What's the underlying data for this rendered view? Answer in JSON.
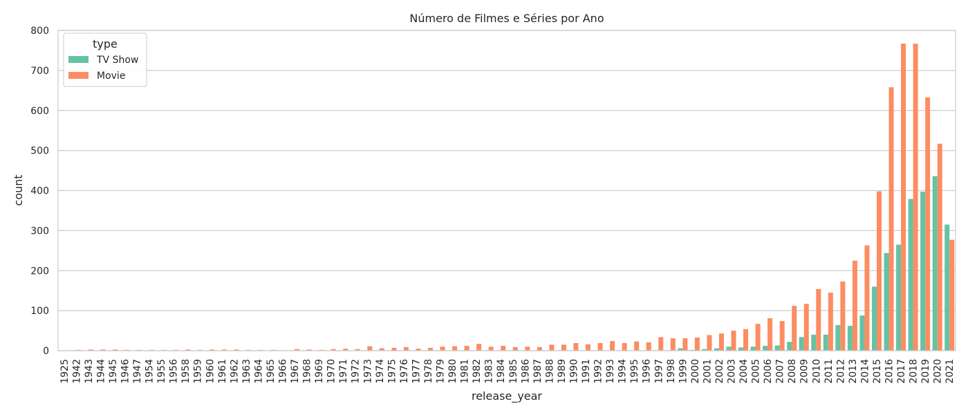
{
  "chart_data": {
    "type": "bar",
    "title": "Número de Filmes e Séries por Ano",
    "xlabel": "release_year",
    "ylabel": "count",
    "ylim": [
      0,
      800
    ],
    "yticks": [
      0,
      100,
      200,
      300,
      400,
      500,
      600,
      700,
      800
    ],
    "grid": true,
    "legend": {
      "title": "type",
      "placement": "top-left"
    },
    "categories": [
      "1925",
      "1942",
      "1943",
      "1944",
      "1945",
      "1946",
      "1947",
      "1954",
      "1955",
      "1956",
      "1958",
      "1959",
      "1960",
      "1961",
      "1962",
      "1963",
      "1964",
      "1965",
      "1966",
      "1967",
      "1968",
      "1969",
      "1970",
      "1971",
      "1972",
      "1973",
      "1974",
      "1975",
      "1976",
      "1977",
      "1978",
      "1979",
      "1980",
      "1981",
      "1982",
      "1983",
      "1984",
      "1985",
      "1986",
      "1987",
      "1988",
      "1989",
      "1990",
      "1991",
      "1992",
      "1993",
      "1994",
      "1995",
      "1996",
      "1997",
      "1998",
      "1999",
      "2000",
      "2001",
      "2002",
      "2003",
      "2004",
      "2005",
      "2006",
      "2007",
      "2008",
      "2009",
      "2010",
      "2011",
      "2012",
      "2013",
      "2014",
      "2015",
      "2016",
      "2017",
      "2018",
      "2019",
      "2020",
      "2021"
    ],
    "series": [
      {
        "name": "TV Show",
        "color": "#66c2a5",
        "values": [
          0,
          0,
          0,
          0,
          0,
          0,
          0,
          0,
          0,
          0,
          0,
          0,
          0,
          0,
          0,
          0,
          0,
          0,
          0,
          0,
          0,
          0,
          0,
          0,
          0,
          1,
          1,
          0,
          0,
          0,
          0,
          0,
          0,
          0,
          0,
          0,
          0,
          0,
          0,
          0,
          0,
          0,
          0,
          1,
          0,
          0,
          0,
          1,
          1,
          1,
          0,
          6,
          2,
          4,
          6,
          10,
          8,
          10,
          12,
          13,
          22,
          34,
          40,
          40,
          64,
          62,
          88,
          160,
          244,
          265,
          379,
          397,
          436,
          315
        ]
      },
      {
        "name": "Movie",
        "color": "#fc8d62",
        "values": [
          0,
          2,
          3,
          3,
          3,
          2,
          2,
          2,
          2,
          2,
          3,
          2,
          3,
          3,
          3,
          2,
          2,
          2,
          1,
          4,
          3,
          2,
          4,
          5,
          4,
          11,
          6,
          7,
          9,
          5,
          7,
          10,
          11,
          12,
          17,
          10,
          12,
          9,
          10,
          9,
          15,
          15,
          19,
          16,
          19,
          24,
          19,
          23,
          21,
          34,
          31,
          31,
          33,
          39,
          43,
          50,
          54,
          67,
          81,
          74,
          112,
          117,
          154,
          145,
          173,
          225,
          263,
          398,
          658,
          767,
          767,
          633,
          517,
          277
        ]
      }
    ]
  }
}
